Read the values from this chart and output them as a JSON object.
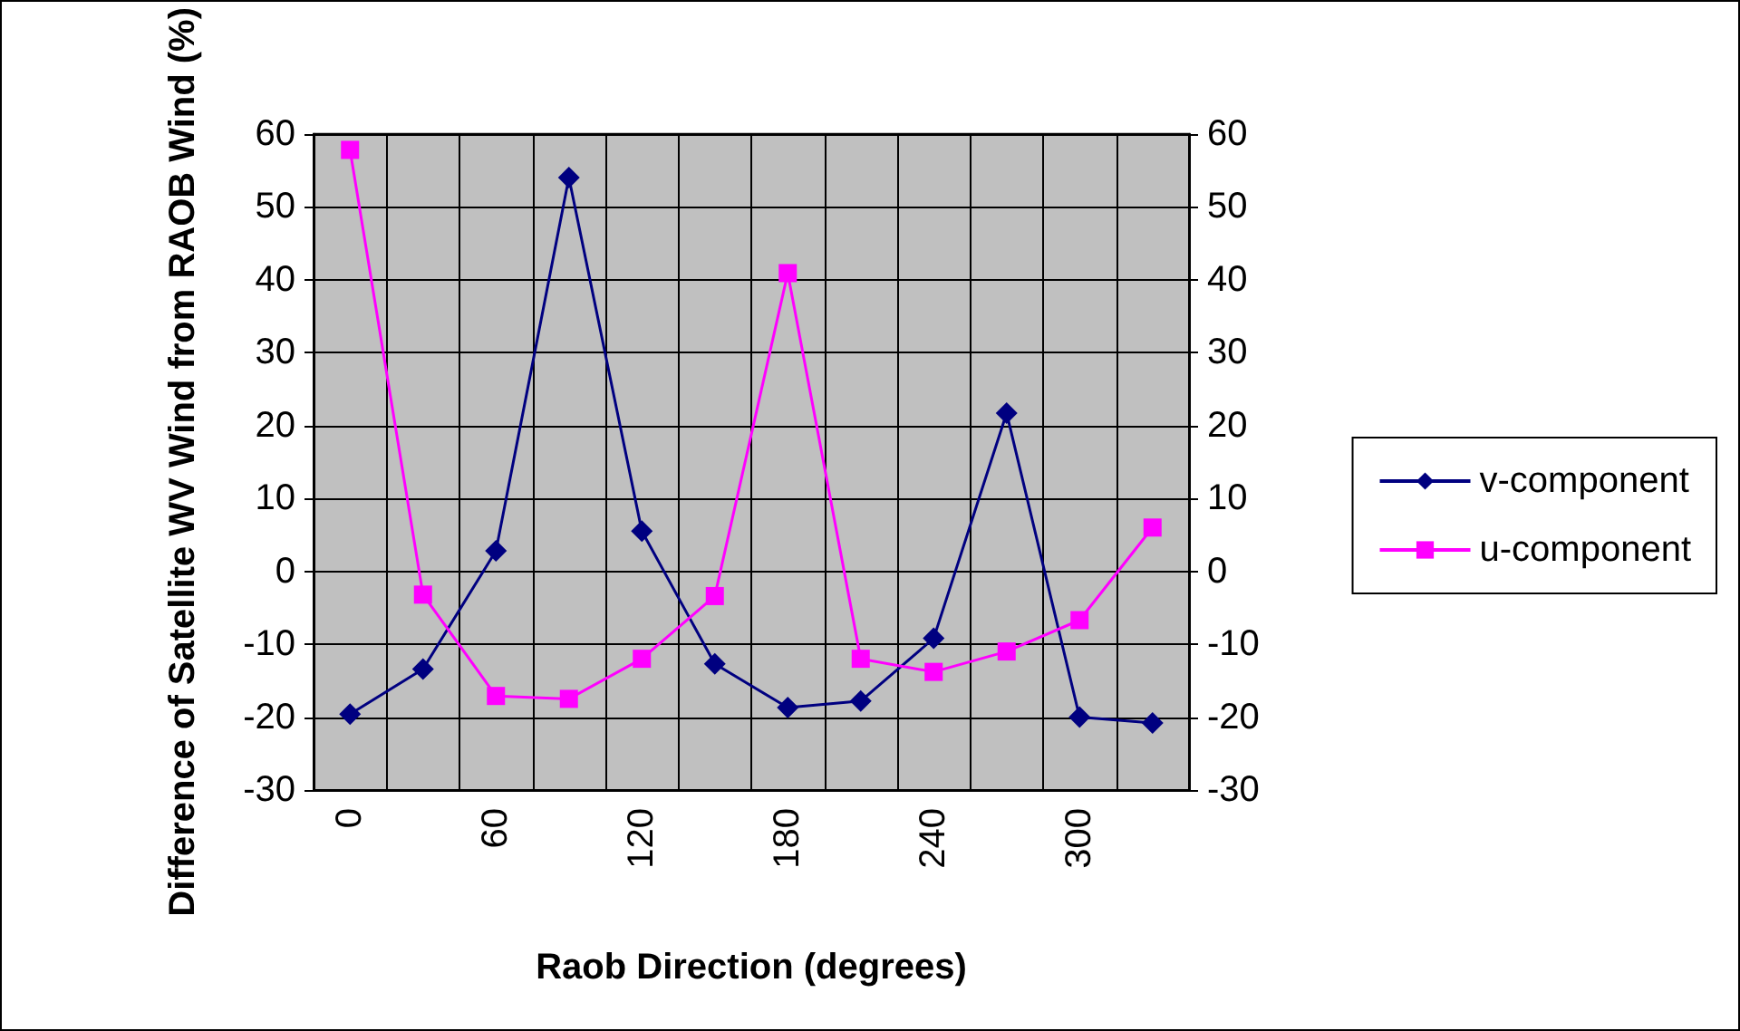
{
  "chart_data": {
    "type": "line",
    "xlabel": "Raob Direction (degrees)",
    "ylabel": "Difference of Satellite WV Wind from RAOB Wind (%)",
    "categories": [
      "0",
      null,
      "60",
      null,
      "120",
      null,
      "180",
      null,
      "240",
      null,
      "300",
      null
    ],
    "series": [
      {
        "name": "v-component",
        "color": "#000080",
        "marker": "diamond",
        "values": [
          -19.6,
          -13.4,
          2.8,
          54,
          5.5,
          -12.7,
          -18.7,
          -17.8,
          -9.2,
          21.7,
          -20,
          -20.8
        ]
      },
      {
        "name": "u-component",
        "color": "#ff00ff",
        "marker": "square",
        "values": [
          57.8,
          -3.2,
          -17.1,
          -17.5,
          -12,
          -3.4,
          40.9,
          -12,
          -13.8,
          -11,
          -6.7,
          6
        ]
      }
    ],
    "ylim": [
      -30,
      60
    ],
    "yticks": [
      -30,
      -20,
      -10,
      0,
      10,
      20,
      30,
      40,
      50,
      60
    ],
    "y2lim": [
      -30,
      60
    ],
    "y2ticks": [
      -30,
      -20,
      -10,
      0,
      10,
      20,
      30,
      40,
      50,
      60
    ],
    "grid": true,
    "legend": "right",
    "line_style": "solid"
  }
}
